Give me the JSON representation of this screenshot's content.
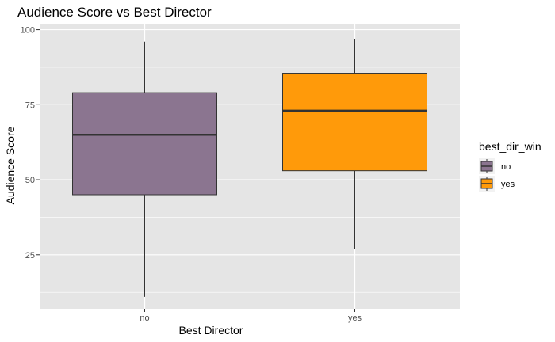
{
  "chart_data": {
    "type": "boxplot",
    "title": "Audience Score vs Best Director",
    "xlabel": "Best Director",
    "ylabel": "Audience Score",
    "categories": [
      "no",
      "yes"
    ],
    "ylim": [
      7,
      102
    ],
    "yticks": [
      25,
      50,
      75,
      100
    ],
    "grid": true,
    "legend": {
      "title": "best_dir_win",
      "position": "right",
      "entries": [
        "no",
        "yes"
      ]
    },
    "colors": {
      "panel_bg": "#e5e5e5",
      "grid": "#ffffff",
      "no": "#8b7590",
      "yes": "#ff9a0a",
      "outline": "#333333"
    },
    "boxes": [
      {
        "category": "no",
        "min": 11,
        "q1": 45,
        "median": 65,
        "q3": 79,
        "max": 96
      },
      {
        "category": "yes",
        "min": 27,
        "q1": 53,
        "median": 73,
        "q3": 85.5,
        "max": 97
      }
    ]
  }
}
